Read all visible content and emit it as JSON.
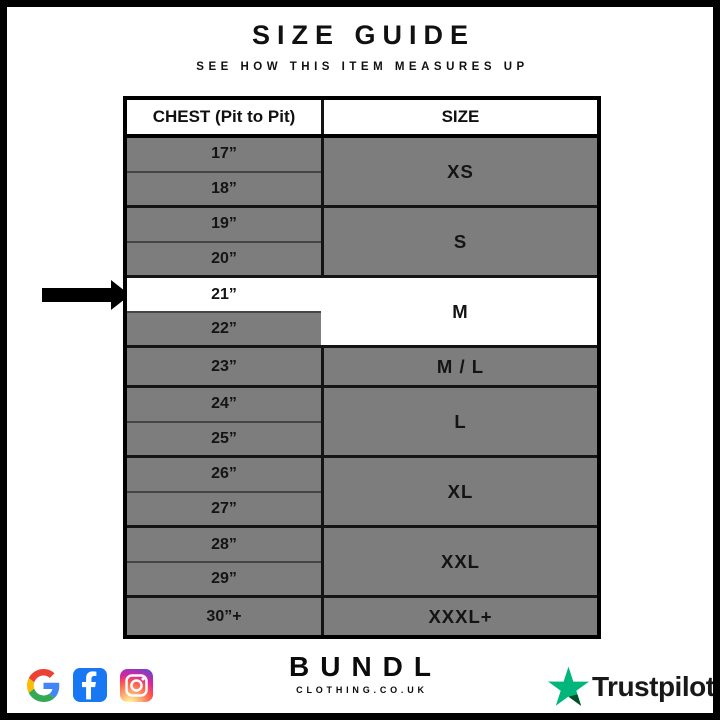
{
  "page": {
    "title": "SIZE GUIDE",
    "subtitle": "SEE HOW THIS ITEM MEASURES UP"
  },
  "table": {
    "headers": {
      "chest": "CHEST (Pit to Pit)",
      "size": "SIZE"
    },
    "groups": [
      {
        "size": "XS",
        "rows": [
          "17”",
          "18”"
        ],
        "highlight": false
      },
      {
        "size": "S",
        "rows": [
          "19”",
          "20”"
        ],
        "highlight": false
      },
      {
        "size": "M",
        "rows": [
          "21”",
          "22”"
        ],
        "highlight": true,
        "highlighted_row": "21”"
      },
      {
        "size": "M / L",
        "rows": [
          "23”"
        ],
        "highlight": false
      },
      {
        "size": "L",
        "rows": [
          "24”",
          "25”"
        ],
        "highlight": false
      },
      {
        "size": "XL",
        "rows": [
          "26”",
          "27”"
        ],
        "highlight": false
      },
      {
        "size": "XXL",
        "rows": [
          "28”",
          "29”"
        ],
        "highlight": false
      },
      {
        "size": "XXXL+",
        "rows": [
          "30”+"
        ],
        "highlight": false
      }
    ]
  },
  "selection": {
    "selected_chest": "21”",
    "selected_size": "M",
    "arrow_icon": "right-arrow"
  },
  "footer": {
    "social_icons": [
      "google-icon",
      "facebook-icon",
      "instagram-icon"
    ],
    "brand": {
      "name": "BUNDL",
      "domain": "CLOTHING.CO.UK"
    },
    "trustpilot": {
      "label": "Trustpilot",
      "icon": "trustpilot-star-icon"
    }
  },
  "colors": {
    "row_gray": "#7d7d7d",
    "highlight_white": "#ffffff",
    "line_black": "#141414",
    "facebook_blue": "#1877f2",
    "trustpilot_green": "#00b67a",
    "trustpilot_dark_green": "#005128",
    "google_red": "#EA4335",
    "google_blue": "#4285F4",
    "google_yellow": "#FBBC05",
    "google_green": "#34A853"
  }
}
